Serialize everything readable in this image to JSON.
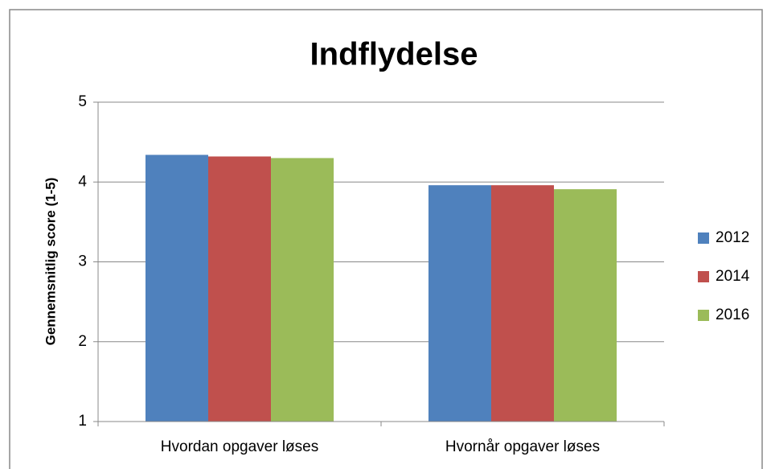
{
  "chart_data": {
    "type": "bar",
    "title": "Indflydelse",
    "y_label": "Gennemsnitlig score (1-5)",
    "categories": [
      "Hvordan opgaver løses",
      "Hvornår opgaver løses"
    ],
    "series": [
      {
        "name": "2012",
        "color": "#4f81bd",
        "values": [
          4.34,
          3.96
        ]
      },
      {
        "name": "2014",
        "color": "#c0504d",
        "values": [
          4.32,
          3.96
        ]
      },
      {
        "name": "2016",
        "color": "#9bbb59",
        "values": [
          4.3,
          3.91
        ]
      }
    ],
    "ylim": [
      1,
      5
    ],
    "yticks": [
      1,
      2,
      3,
      4,
      5
    ],
    "grid": true,
    "legend": "right"
  }
}
